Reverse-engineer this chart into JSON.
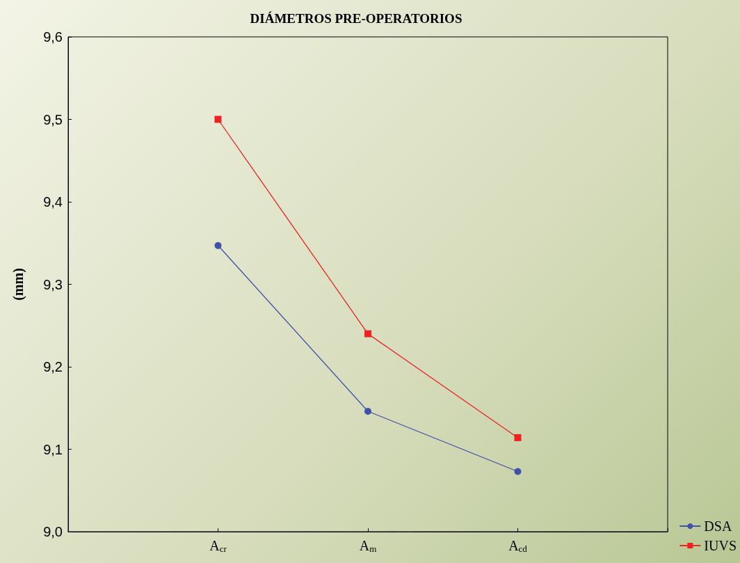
{
  "chart_data": {
    "type": "line",
    "title": "DIÁMETROS PRE-OPERATORIOS",
    "ylabel": "(mm)",
    "categories": [
      "A$_{cr}$",
      "A$_{m}$",
      "A$_{cd}$"
    ],
    "series": [
      {
        "name": "DSA",
        "color": "#3f51a8",
        "marker": "circle",
        "values": [
          9.347,
          9.146,
          9.073
        ]
      },
      {
        "name": "IUVS",
        "color": "#ee2222",
        "marker": "square",
        "values": [
          9.5,
          9.24,
          9.114
        ]
      }
    ],
    "ylim": [
      9.0,
      9.6
    ],
    "yticks": [
      {
        "value": 9.0,
        "label": "9,0"
      },
      {
        "value": 9.1,
        "label": "9,1"
      },
      {
        "value": 9.2,
        "label": "9,2"
      },
      {
        "value": 9.3,
        "label": "9,3"
      },
      {
        "value": 9.4,
        "label": "9,4"
      },
      {
        "value": 9.5,
        "label": "9,5"
      },
      {
        "value": 9.6,
        "label": "9,6"
      }
    ],
    "grid": false,
    "legend": "bottom right",
    "line_style": "solid"
  }
}
